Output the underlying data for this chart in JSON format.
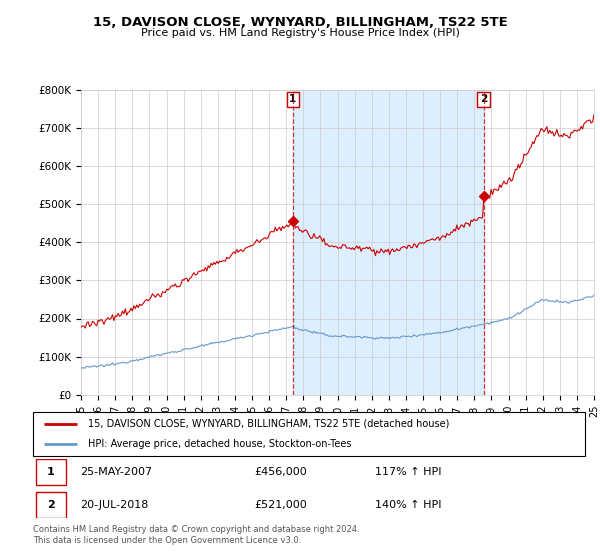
{
  "title": "15, DAVISON CLOSE, WYNYARD, BILLINGHAM, TS22 5TE",
  "subtitle": "Price paid vs. HM Land Registry's House Price Index (HPI)",
  "ylim": [
    0,
    800000
  ],
  "yticks": [
    0,
    100000,
    200000,
    300000,
    400000,
    500000,
    600000,
    700000,
    800000
  ],
  "ytick_labels": [
    "£0",
    "£100K",
    "£200K",
    "£300K",
    "£400K",
    "£500K",
    "£600K",
    "£700K",
    "£800K"
  ],
  "legend_line1": "15, DAVISON CLOSE, WYNYARD, BILLINGHAM, TS22 5TE (detached house)",
  "legend_line2": "HPI: Average price, detached house, Stockton-on-Tees",
  "annotation1_label": "1",
  "annotation1_date": "25-MAY-2007",
  "annotation1_price": "£456,000",
  "annotation1_hpi": "117% ↑ HPI",
  "annotation2_label": "2",
  "annotation2_date": "20-JUL-2018",
  "annotation2_price": "£521,000",
  "annotation2_hpi": "140% ↑ HPI",
  "footer": "Contains HM Land Registry data © Crown copyright and database right 2024.\nThis data is licensed under the Open Government Licence v3.0.",
  "hpi_color": "#6699cc",
  "hpi_fill_color": "#ddeeff",
  "price_color": "#cc0000",
  "vline_color": "#cc0000",
  "sale1_x": 2007.39,
  "sale1_y": 456000,
  "sale2_x": 2018.54,
  "sale2_y": 521000,
  "xmin": 1995,
  "xmax": 2025
}
